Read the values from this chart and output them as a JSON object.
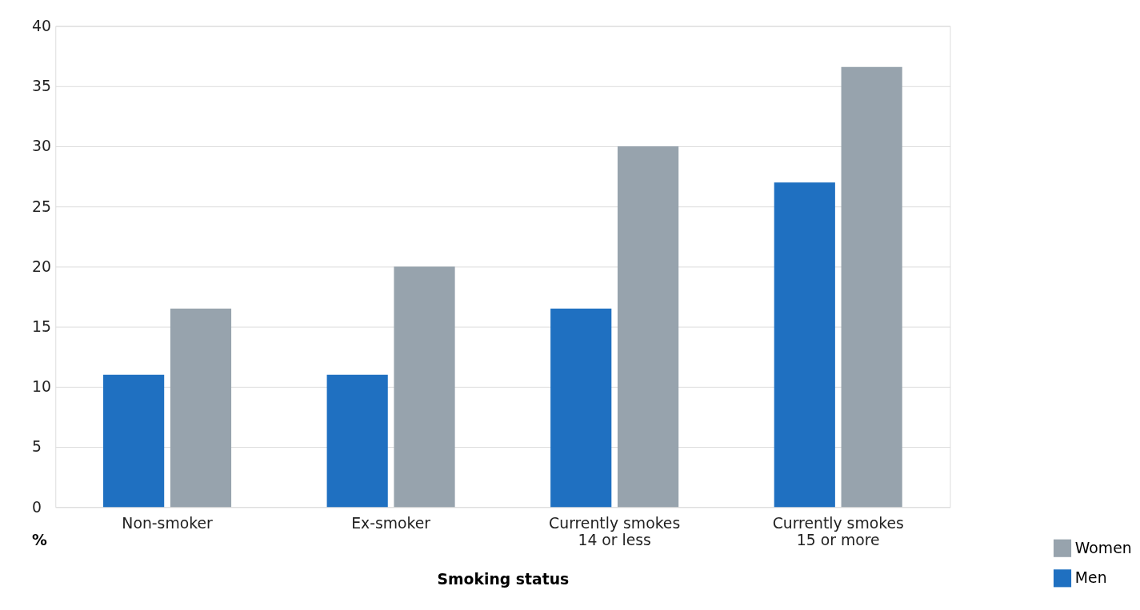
{
  "chart_data": {
    "type": "bar",
    "xlabel": "Smoking status",
    "ylabel": "%",
    "categories": [
      "Non-smoker",
      "Ex-smoker",
      "Currently smokes\n14 or less",
      "Currently  smokes\n15 or more"
    ],
    "series": [
      {
        "name": "Men",
        "color": "#1f70c1",
        "values": [
          11,
          11,
          16.5,
          27
        ]
      },
      {
        "name": "Women",
        "color": "#97a3ad",
        "values": [
          16.5,
          20,
          30,
          36.6
        ]
      }
    ],
    "ylim": [
      0,
      40
    ],
    "yticks": [
      0,
      5,
      10,
      15,
      20,
      25,
      30,
      35,
      40
    ],
    "grid": "y",
    "legend": "bottom right"
  }
}
